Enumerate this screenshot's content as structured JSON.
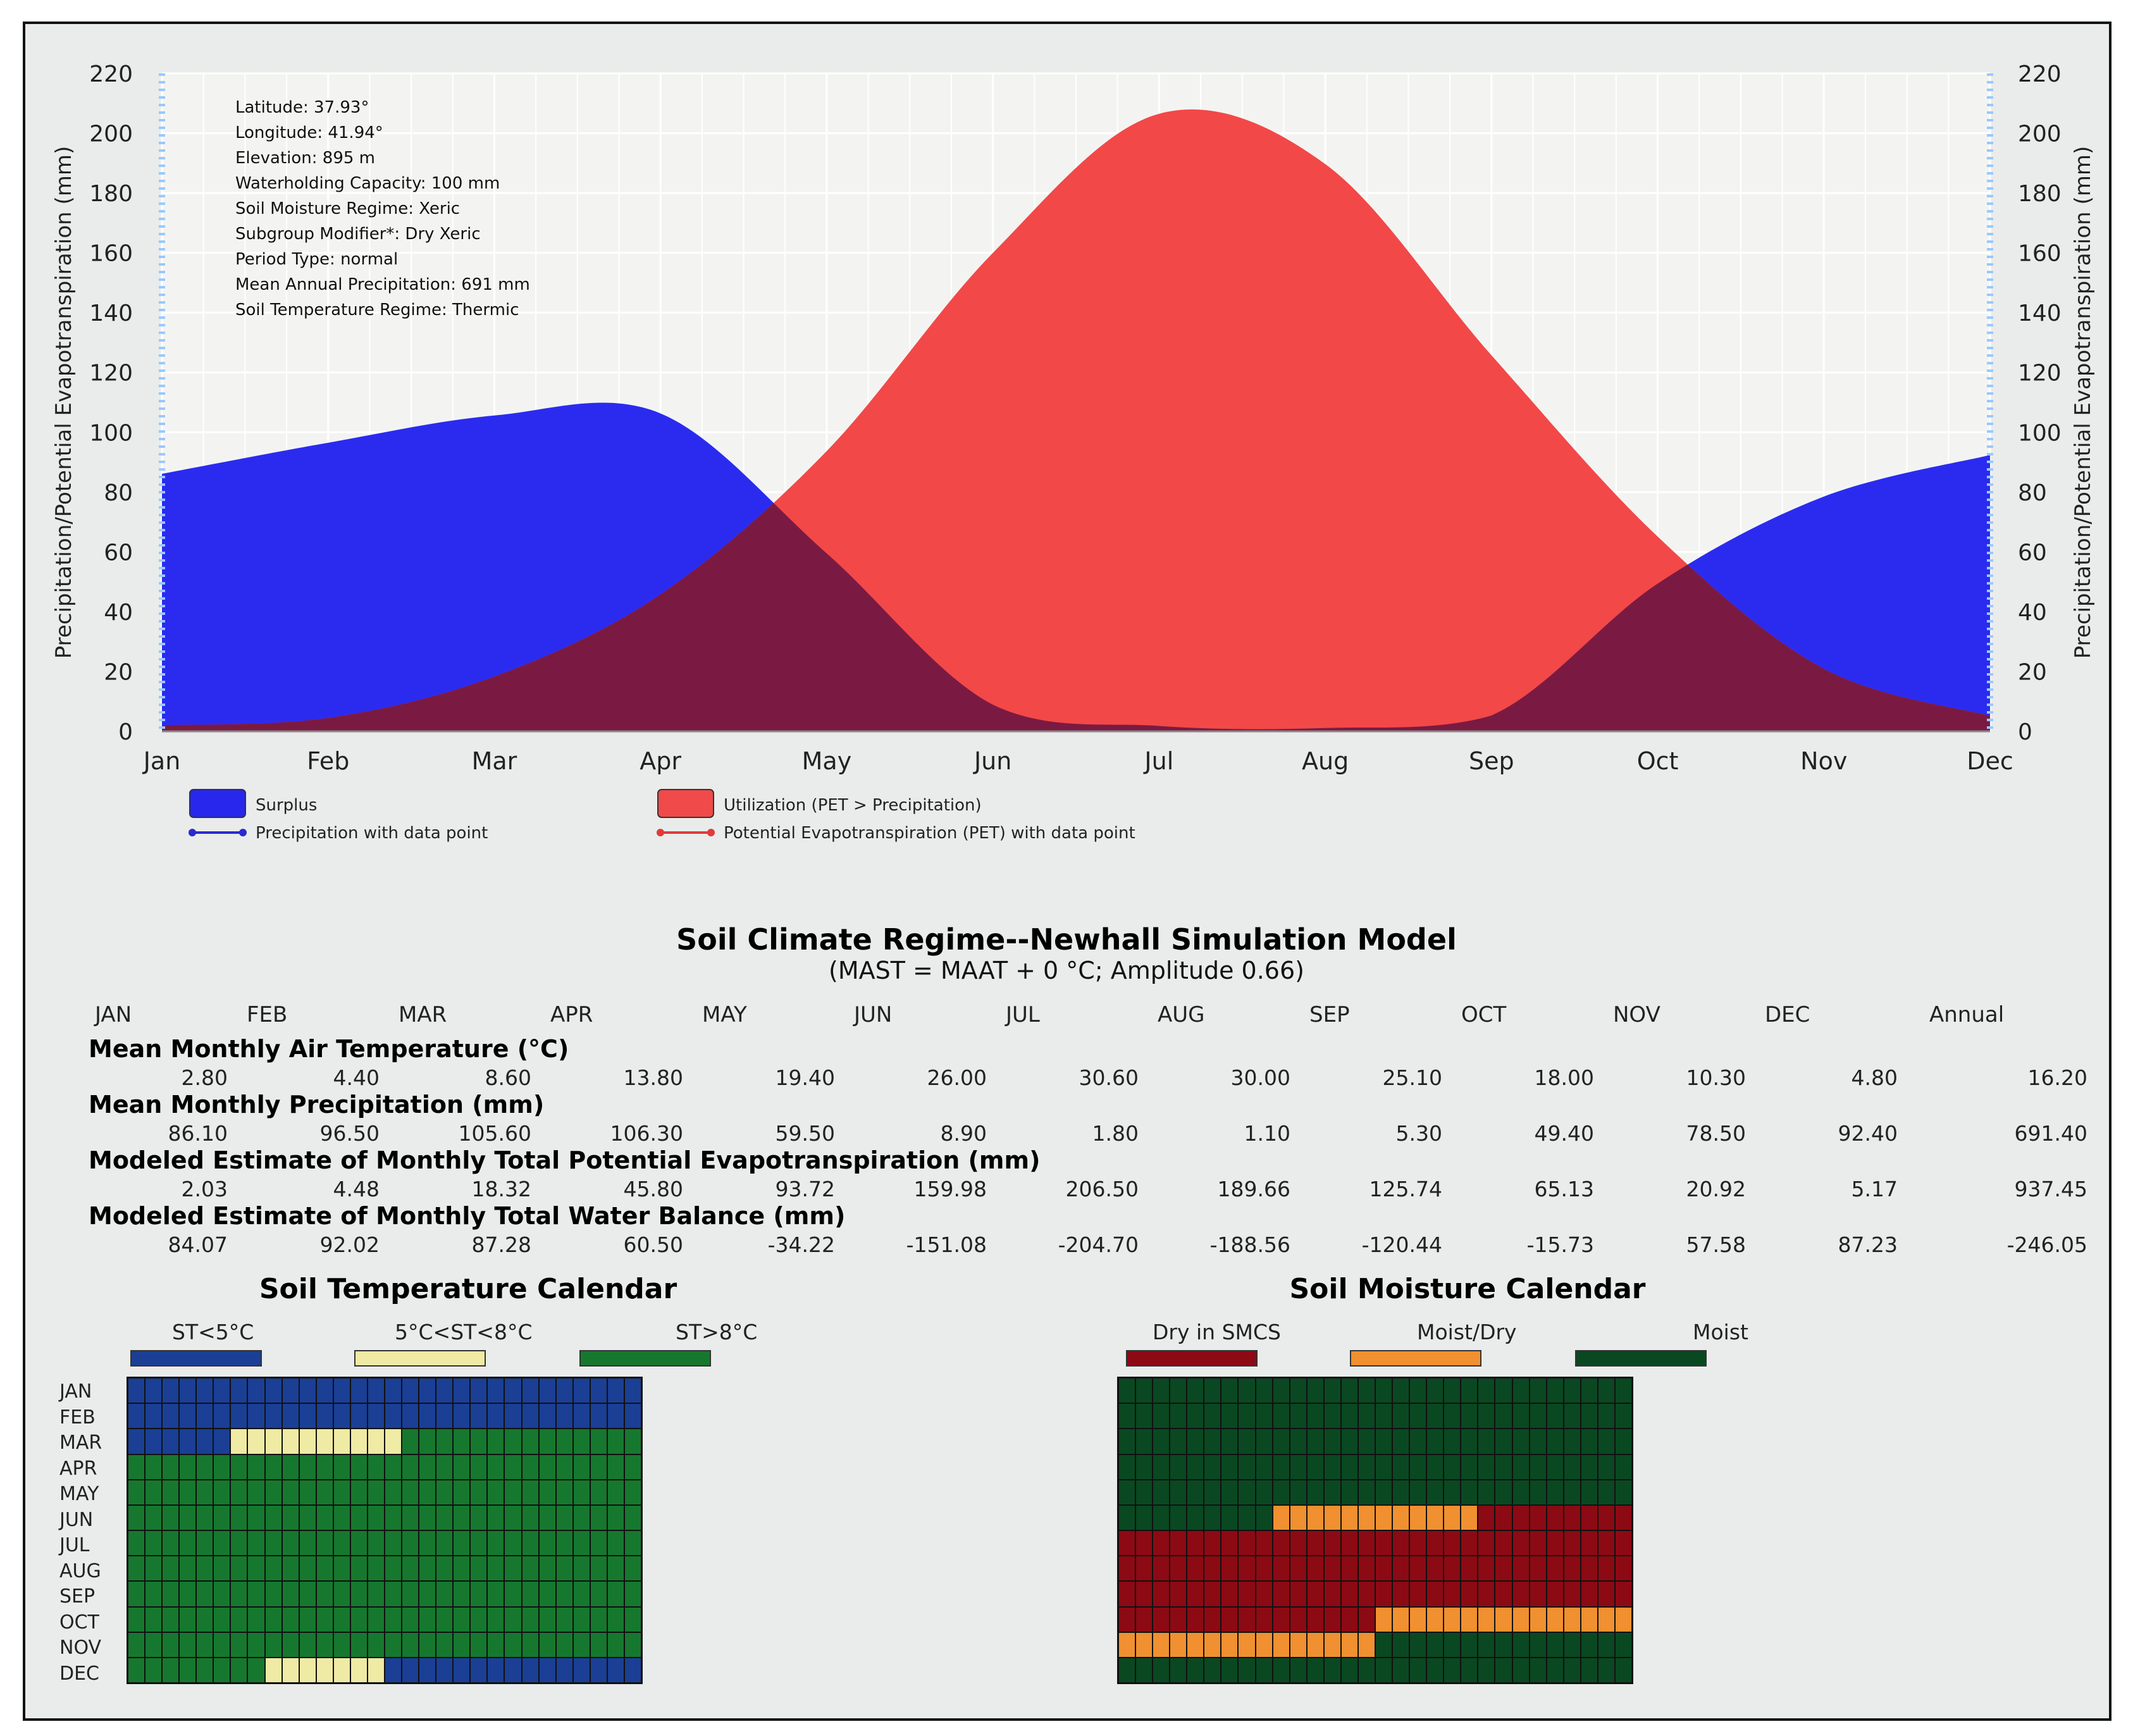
{
  "chart_data": {
    "type": "area",
    "x": [
      "Jan",
      "Feb",
      "Mar",
      "Apr",
      "May",
      "Jun",
      "Jul",
      "Aug",
      "Sep",
      "Oct",
      "Nov",
      "Dec"
    ],
    "series": [
      {
        "name": "Precipitation with data point",
        "values": [
          86.1,
          96.5,
          105.6,
          106.3,
          59.5,
          8.9,
          1.8,
          1.1,
          5.3,
          49.4,
          78.5,
          92.4
        ]
      },
      {
        "name": "Potential Evapotranspiration (PET) with data point",
        "values": [
          2.03,
          4.48,
          18.32,
          45.8,
          93.72,
          159.98,
          206.5,
          189.66,
          125.74,
          65.13,
          20.92,
          5.17
        ]
      }
    ],
    "ylabel_left": "Precipitation/Potential Evapotranspiration (mm)",
    "ylabel_right": "Precipitation/Potential Evapotranspiration (mm)",
    "ylim": [
      0,
      220
    ],
    "yticks": [
      0,
      20,
      40,
      60,
      80,
      100,
      120,
      140,
      160,
      180,
      200,
      220
    ],
    "legend": [
      {
        "label": "Surplus",
        "color": "#2727ee",
        "kind": "area"
      },
      {
        "label": "Utilization (PET > Precipitation)",
        "color": "#f04a4a",
        "kind": "area"
      },
      {
        "label": "Precipitation with data point",
        "color": "#2a2ad0",
        "kind": "line"
      },
      {
        "label": "Potential Evapotranspiration (PET) with data point",
        "color": "#e03a3a",
        "kind": "line"
      }
    ],
    "annotations": [
      "Latitude:  37.93°",
      "Longitude: 41.94°",
      "Elevation:  895 m",
      "Waterholding Capacity: 100 mm",
      "Soil Moisture Regime: Xeric",
      "Subgroup Modifier*: Dry Xeric",
      "Period Type: normal",
      "Mean Annual Precipitation: 691 mm",
      "Soil Temperature Regime: Thermic"
    ],
    "colors": {
      "surplus": "#2b2bf0",
      "utilization": "#f24848",
      "overlap": "#7a1a42",
      "grid": "#ffffff",
      "axis_accent": "#9ac8ff"
    }
  },
  "table": {
    "title": "Soil Climate Regime--Newhall Simulation Model",
    "subtitle": "(MAST = MAAT + 0 °C; Amplitude 0.66)",
    "columns": [
      "JAN",
      "FEB",
      "MAR",
      "APR",
      "MAY",
      "JUN",
      "JUL",
      "AUG",
      "SEP",
      "OCT",
      "NOV",
      "DEC",
      "Annual"
    ],
    "rows": [
      {
        "label": "Mean Monthly Air Temperature (°C)",
        "values": [
          "2.80",
          "4.40",
          "8.60",
          "13.80",
          "19.40",
          "26.00",
          "30.60",
          "30.00",
          "25.10",
          "18.00",
          "10.30",
          "4.80",
          "16.20"
        ]
      },
      {
        "label": "Mean Monthly Precipitation (mm)",
        "values": [
          "86.10",
          "96.50",
          "105.60",
          "106.30",
          "59.50",
          "8.90",
          "1.80",
          "1.10",
          "5.30",
          "49.40",
          "78.50",
          "92.40",
          "691.40"
        ]
      },
      {
        "label": "Modeled Estimate of Monthly Total Potential Evapotranspiration (mm)",
        "values": [
          "2.03",
          "4.48",
          "18.32",
          "45.80",
          "93.72",
          "159.98",
          "206.50",
          "189.66",
          "125.74",
          "65.13",
          "20.92",
          "5.17",
          "937.45"
        ]
      },
      {
        "label": "Modeled Estimate of Monthly Total Water Balance (mm)",
        "values": [
          "84.07",
          "92.02",
          "87.28",
          "60.50",
          "-34.22",
          "-151.08",
          "-204.70",
          "-188.56",
          "-120.44",
          "-15.73",
          "57.58",
          "87.23",
          "-246.05"
        ]
      }
    ]
  },
  "calendars": {
    "months": [
      "JAN",
      "FEB",
      "MAR",
      "APR",
      "MAY",
      "JUN",
      "JUL",
      "AUG",
      "SEP",
      "OCT",
      "NOV",
      "DEC"
    ],
    "temperature": {
      "title": "Soil Temperature Calendar",
      "legend": [
        {
          "label": "ST<5°C",
          "color": "#1a3f95"
        },
        {
          "label": "5°C<ST<8°C",
          "color": "#efeaa4"
        },
        {
          "label": "ST>8°C",
          "color": "#16782e"
        }
      ],
      "segments": [
        [
          [
            0,
            30,
            0
          ]
        ],
        [
          [
            0,
            30,
            0
          ]
        ],
        [
          [
            0,
            6,
            0
          ],
          [
            6,
            16,
            1
          ],
          [
            16,
            30,
            2
          ]
        ],
        [
          [
            0,
            30,
            2
          ]
        ],
        [
          [
            0,
            30,
            2
          ]
        ],
        [
          [
            0,
            30,
            2
          ]
        ],
        [
          [
            0,
            30,
            2
          ]
        ],
        [
          [
            0,
            30,
            2
          ]
        ],
        [
          [
            0,
            30,
            2
          ]
        ],
        [
          [
            0,
            30,
            2
          ]
        ],
        [
          [
            0,
            30,
            2
          ]
        ],
        [
          [
            0,
            8,
            2
          ],
          [
            8,
            15,
            1
          ],
          [
            15,
            30,
            0
          ]
        ]
      ]
    },
    "moisture": {
      "title": "Soil Moisture Calendar",
      "legend": [
        {
          "label": "Dry in SMCS",
          "color": "#8c0a14"
        },
        {
          "label": "Moist/Dry",
          "color": "#f09030"
        },
        {
          "label": "Moist",
          "color": "#0a4822"
        }
      ],
      "segments": [
        [
          [
            0,
            30,
            2
          ]
        ],
        [
          [
            0,
            30,
            2
          ]
        ],
        [
          [
            0,
            30,
            2
          ]
        ],
        [
          [
            0,
            30,
            2
          ]
        ],
        [
          [
            0,
            30,
            2
          ]
        ],
        [
          [
            0,
            9,
            2
          ],
          [
            9,
            21,
            1
          ],
          [
            21,
            30,
            0
          ]
        ],
        [
          [
            0,
            30,
            0
          ]
        ],
        [
          [
            0,
            30,
            0
          ]
        ],
        [
          [
            0,
            30,
            0
          ]
        ],
        [
          [
            0,
            15,
            0
          ],
          [
            15,
            30,
            1
          ]
        ],
        [
          [
            0,
            15,
            1
          ],
          [
            15,
            30,
            2
          ]
        ],
        [
          [
            0,
            30,
            2
          ]
        ]
      ]
    }
  }
}
